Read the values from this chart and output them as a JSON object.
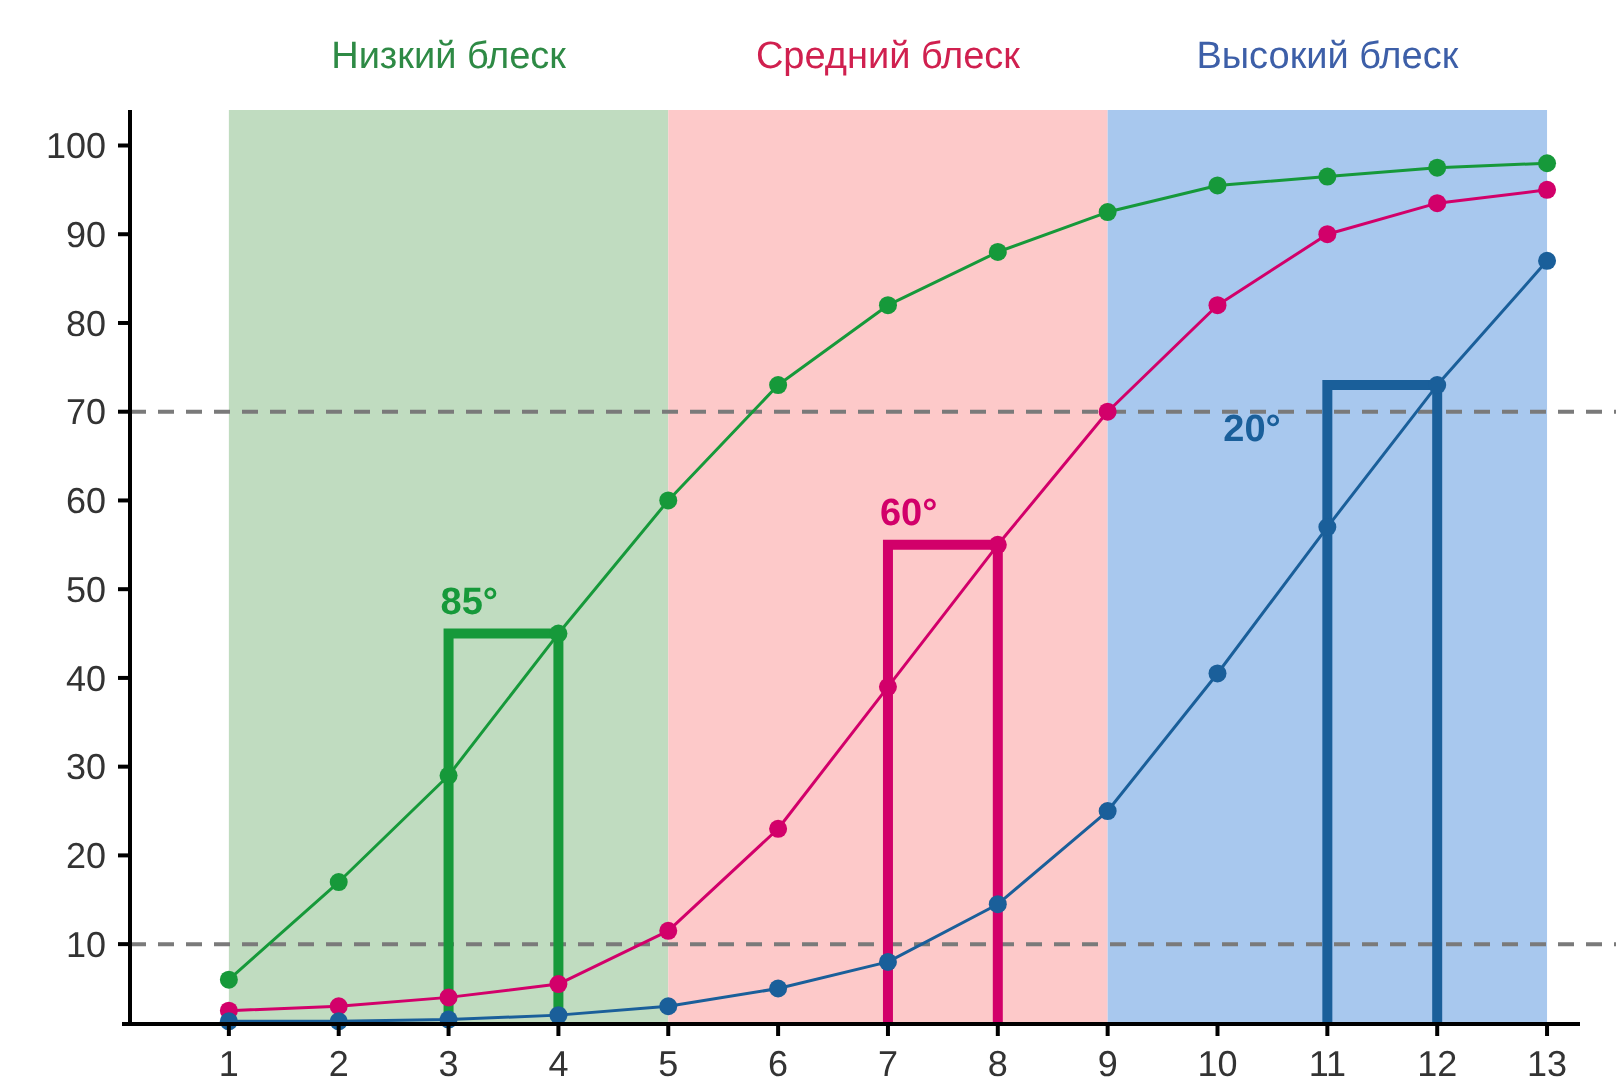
{
  "chart_data": {
    "type": "line",
    "x": [
      1,
      2,
      3,
      4,
      5,
      6,
      7,
      8,
      9,
      10,
      11,
      12,
      13
    ],
    "series": [
      {
        "color": "#16993a",
        "values": [
          6,
          17,
          29,
          45,
          60,
          73,
          82,
          88,
          92.5,
          95.5,
          96.5,
          97.5,
          98
        ]
      },
      {
        "color": "#d2006a",
        "values": [
          2.5,
          3,
          4,
          5.5,
          11.5,
          23,
          39,
          55,
          70,
          82,
          90,
          93.5,
          95
        ]
      },
      {
        "color": "#1a5f9a",
        "values": [
          1.3,
          1.3,
          1.5,
          2,
          3,
          5,
          8,
          14.5,
          25,
          40.5,
          57,
          73,
          87
        ]
      }
    ],
    "xlim": [
      0.1,
      13.3
    ],
    "xticks": [
      1,
      2,
      3,
      4,
      5,
      6,
      7,
      8,
      9,
      10,
      11,
      12,
      13
    ],
    "ylim": [
      1,
      104
    ],
    "yticks": [
      10,
      20,
      30,
      40,
      50,
      60,
      70,
      80,
      90,
      100
    ],
    "bands": [
      {
        "axis": "x",
        "from": 1,
        "to": 5,
        "label": "Низкий блеск",
        "color": "#c0dcc0"
      },
      {
        "axis": "x",
        "from": 5,
        "to": 9,
        "label": "Средний блеск",
        "color": "#fdc9c9"
      },
      {
        "axis": "x",
        "from": 9,
        "to": 13,
        "label": "Высокий блеск",
        "color": "#a8c8ee"
      }
    ],
    "ref_lines": [
      {
        "axis": "y",
        "value": 70,
        "color": "#7a7a7a",
        "line_style": "dashed"
      },
      {
        "axis": "y",
        "value": 10,
        "color": "#7a7a7a",
        "line_style": "dashed"
      }
    ],
    "annotations": [
      "85°",
      "60°",
      "20°"
    ],
    "marker": "circle",
    "line_style": "solid",
    "grid": false
  }
}
